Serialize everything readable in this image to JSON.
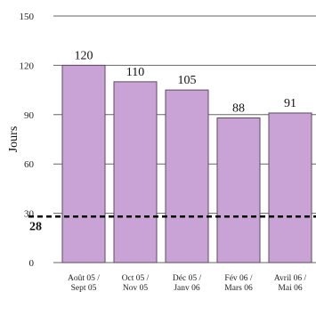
{
  "chart_data": {
    "type": "bar",
    "title": "",
    "xlabel": "",
    "ylabel": "Jours",
    "ylim": [
      0,
      150
    ],
    "yticks": [
      0,
      30,
      60,
      90,
      120,
      150
    ],
    "categories": [
      [
        "Août 05 /",
        "Sept 05"
      ],
      [
        "Oct 05 /",
        "Nov 05"
      ],
      [
        "Déc 05 /",
        "Janv 06"
      ],
      [
        "Fév 06 /",
        "Mars 06"
      ],
      [
        "Avril 06 /",
        "Mai 06"
      ]
    ],
    "values": [
      120,
      110,
      105,
      88,
      91
    ],
    "value_labels": [
      "120",
      "110",
      "105",
      "88",
      "91"
    ],
    "reference_line": {
      "value": 28,
      "label": "28",
      "style": "dashed"
    },
    "grid": true,
    "bar_color": "#c9a3d6",
    "bar_edge_color": "#5a4a60",
    "grid_color": "#666666"
  }
}
